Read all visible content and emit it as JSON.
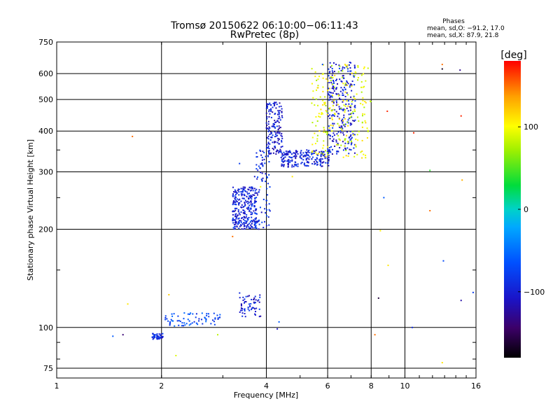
{
  "chart_data": {
    "type": "scatter",
    "title": "Tromsø 20150622 06:10:00−06:11:43",
    "subtitle": "RwPretec (8p)",
    "xlabel": "Frequency [MHz]",
    "ylabel": "Stationary phase Virtual Height [km]",
    "x_scale": "log2",
    "y_scale": "log",
    "xlim": [
      1,
      16
    ],
    "ylim": [
      70,
      750
    ],
    "x_ticks": [
      1,
      2,
      4,
      6,
      8,
      10,
      16
    ],
    "x_tick_labels": [
      "1",
      "2",
      "4",
      "6",
      "8",
      "10",
      "16"
    ],
    "y_ticks": [
      75,
      100,
      200,
      300,
      400,
      500,
      600,
      750
    ],
    "y_tick_labels": [
      "75",
      "100",
      "200",
      "300",
      "400",
      "500",
      "600",
      "750"
    ],
    "grid": true,
    "phases": {
      "title": "Phases",
      "line_o": "mean, sd,O: −91.2, 17.0",
      "line_x": "mean, sd,X:  87.9, 21.8"
    },
    "colorbar": {
      "label": "[deg]",
      "range": [
        -180,
        180
      ],
      "ticks": [
        100,
        0,
        -100
      ],
      "tick_labels": [
        "100",
        "0",
        "−100"
      ]
    },
    "point_groups": [
      {
        "desc": "low-frequency cluster",
        "x": [
          1.88,
          2.02
        ],
        "y": [
          92,
          96
        ],
        "n": 45,
        "phase": -90
      },
      {
        "desc": "E-layer echoes",
        "x": [
          2.05,
          2.95
        ],
        "y": [
          101,
          111
        ],
        "n": 70,
        "phase": -70
      },
      {
        "desc": "Es blob",
        "x": [
          3.35,
          3.85
        ],
        "y": [
          108,
          128
        ],
        "n": 60,
        "phase": -98
      },
      {
        "desc": "F1 region blob",
        "x": [
          3.2,
          3.75
        ],
        "y": [
          200,
          270
        ],
        "n": 280,
        "phase": -95
      },
      {
        "desc": "F1 rising branch",
        "x": [
          3.7,
          4.1
        ],
        "y": [
          200,
          360
        ],
        "n": 90,
        "phase": -92
      },
      {
        "desc": "F1 cusp",
        "x": [
          4.0,
          4.45
        ],
        "y": [
          340,
          490
        ],
        "n": 160,
        "phase": -102
      },
      {
        "desc": "F2 O-mode trace",
        "x": [
          4.4,
          6.1
        ],
        "y": [
          310,
          350
        ],
        "n": 200,
        "phase": -98
      },
      {
        "desc": "F2 O-mode rise",
        "x": [
          6.0,
          7.2
        ],
        "y": [
          340,
          650
        ],
        "n": 260,
        "phase": -100
      },
      {
        "desc": "F2 X-mode trace",
        "x": [
          5.4,
          8.0
        ],
        "y": [
          330,
          640
        ],
        "n": 230,
        "phase": 95
      }
    ],
    "scattered_points": [
      {
        "x": 1.45,
        "y": 94,
        "phase": -60
      },
      {
        "x": 1.55,
        "y": 95,
        "phase": -140
      },
      {
        "x": 1.6,
        "y": 118,
        "phase": 110
      },
      {
        "x": 1.65,
        "y": 385,
        "phase": 150
      },
      {
        "x": 2.1,
        "y": 126,
        "phase": 120
      },
      {
        "x": 2.2,
        "y": 82,
        "phase": 90
      },
      {
        "x": 2.9,
        "y": 95,
        "phase": 80
      },
      {
        "x": 3.2,
        "y": 190,
        "phase": 150
      },
      {
        "x": 3.35,
        "y": 318,
        "phase": -80
      },
      {
        "x": 3.85,
        "y": 270,
        "phase": 100
      },
      {
        "x": 4.3,
        "y": 99,
        "phase": -110
      },
      {
        "x": 4.35,
        "y": 104,
        "phase": -60
      },
      {
        "x": 4.75,
        "y": 290,
        "phase": 110
      },
      {
        "x": 5.8,
        "y": 640,
        "phase": -70
      },
      {
        "x": 8.2,
        "y": 95,
        "phase": 150
      },
      {
        "x": 8.4,
        "y": 123,
        "phase": -160
      },
      {
        "x": 8.5,
        "y": 198,
        "phase": 110
      },
      {
        "x": 8.7,
        "y": 250,
        "phase": -60
      },
      {
        "x": 8.9,
        "y": 460,
        "phase": 170
      },
      {
        "x": 8.95,
        "y": 155,
        "phase": 110
      },
      {
        "x": 10.6,
        "y": 395,
        "phase": 170
      },
      {
        "x": 10.5,
        "y": 100,
        "phase": -90
      },
      {
        "x": 11.8,
        "y": 303,
        "phase": 40
      },
      {
        "x": 11.8,
        "y": 228,
        "phase": 150
      },
      {
        "x": 12.8,
        "y": 640,
        "phase": 150
      },
      {
        "x": 12.8,
        "y": 620,
        "phase": -170
      },
      {
        "x": 12.9,
        "y": 160,
        "phase": -70
      },
      {
        "x": 12.8,
        "y": 78,
        "phase": 110
      },
      {
        "x": 14.4,
        "y": 615,
        "phase": -130
      },
      {
        "x": 14.5,
        "y": 445,
        "phase": 170
      },
      {
        "x": 14.6,
        "y": 283,
        "phase": 130
      },
      {
        "x": 14.5,
        "y": 121,
        "phase": -120
      },
      {
        "x": 15.7,
        "y": 128,
        "phase": -80
      }
    ]
  }
}
